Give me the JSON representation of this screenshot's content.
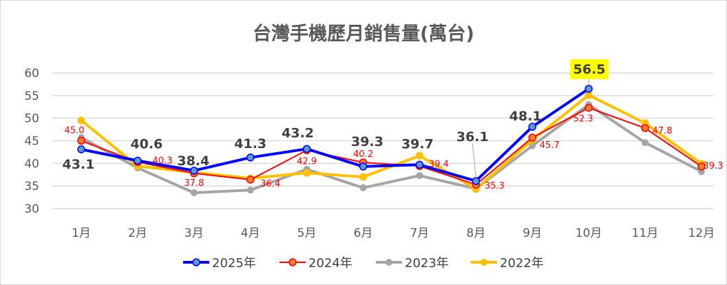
{
  "chart_data": {
    "type": "line",
    "title": "台灣手機歷月銷售量(萬台)",
    "xlabel": "",
    "ylabel": "",
    "categories": [
      "1月",
      "2月",
      "3月",
      "4月",
      "5月",
      "6月",
      "7月",
      "8月",
      "9月",
      "10月",
      "11月",
      "12月"
    ],
    "ylim": [
      30,
      60
    ],
    "yticks": [
      30,
      35,
      40,
      45,
      50,
      55,
      60
    ],
    "grid": true,
    "legend_position": "bottom",
    "series": [
      {
        "name": "2025年",
        "color": "#0000ff",
        "marker_fill": "#5b9bd5",
        "values": [
          43.1,
          40.6,
          38.4,
          41.3,
          43.2,
          39.3,
          39.7,
          36.1,
          48.1,
          56.5,
          null,
          null
        ],
        "labels": [
          "43.1",
          "40.6",
          "38.4",
          "41.3",
          "43.2",
          "39.3",
          "39.7",
          "36.1",
          "48.1",
          "56.5",
          null,
          null
        ]
      },
      {
        "name": "2024年",
        "color": "#ff0000",
        "marker_fill": "#ed7d31",
        "values": [
          45.0,
          40.3,
          37.8,
          36.4,
          42.9,
          40.2,
          39.4,
          35.3,
          45.7,
          52.3,
          47.8,
          39.3
        ],
        "labels": [
          "45.0",
          "40.3",
          "37.8",
          "36.4",
          "42.9",
          "40.2",
          "39.4",
          "35.3",
          "45.7",
          "52.3",
          "47.8",
          "39.3"
        ]
      },
      {
        "name": "2023年",
        "color": "#a5a5a5",
        "marker_fill": "#a5a5a5",
        "values": [
          45.7,
          39.0,
          33.5,
          34.1,
          38.7,
          34.6,
          37.3,
          34.4,
          43.9,
          53.0,
          44.6,
          38.2
        ]
      },
      {
        "name": "2022年",
        "color": "#ffc000",
        "marker_fill": "#ffc000",
        "values": [
          49.5,
          39.4,
          38.0,
          36.7,
          37.9,
          37.0,
          41.7,
          34.3,
          45.2,
          55.1,
          48.9,
          39.9
        ]
      }
    ],
    "highlight": {
      "label": "56.5",
      "background": "#ffff00"
    }
  }
}
